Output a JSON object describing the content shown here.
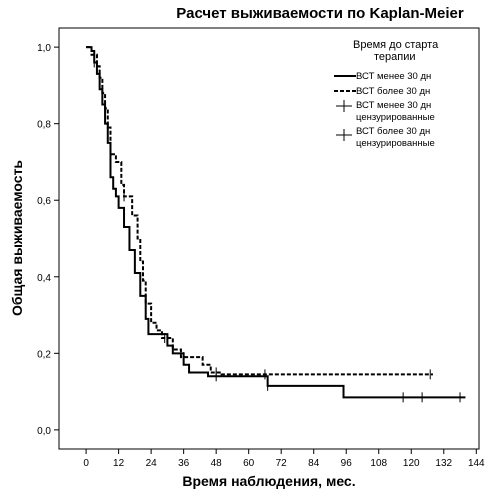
{
  "chart_data": {
    "type": "line",
    "title": "Расчет выживаемости по Kaplan-Meier",
    "xlabel": "Время наблюдения, мес.",
    "ylabel": "Общая выживаемость",
    "xlim": [
      -10,
      145
    ],
    "ylim": [
      -0.05,
      1.05
    ],
    "xticks": [
      0,
      12,
      24,
      36,
      48,
      60,
      72,
      84,
      96,
      108,
      120,
      132,
      144
    ],
    "yticks": [
      0.0,
      0.2,
      0.4,
      0.6,
      0.8,
      1.0
    ],
    "ytick_labels": [
      "0,0",
      "0,2",
      "0,4",
      "0,6",
      "0,8",
      "1,0"
    ],
    "grid": false,
    "legend": {
      "position": "top-right",
      "title": "Время до старта терапии",
      "entries": [
        "ВСТ менее 30 дн",
        "ВСТ более 30 дн",
        "ВСТ менее 30 дн цензурированные",
        "ВСТ более 30 дн цензурированные"
      ]
    },
    "series": [
      {
        "name": "ВСТ менее 30 дн",
        "style": "solid",
        "color": "#000000",
        "steps": [
          [
            0,
            1.0
          ],
          [
            2,
            0.99
          ],
          [
            3,
            0.96
          ],
          [
            4,
            0.93
          ],
          [
            5,
            0.89
          ],
          [
            6,
            0.85
          ],
          [
            7,
            0.8
          ],
          [
            8,
            0.75
          ],
          [
            9,
            0.66
          ],
          [
            10,
            0.63
          ],
          [
            11,
            0.61
          ],
          [
            12,
            0.58
          ],
          [
            14,
            0.53
          ],
          [
            16,
            0.47
          ],
          [
            18,
            0.41
          ],
          [
            20,
            0.35
          ],
          [
            22,
            0.29
          ],
          [
            23,
            0.25
          ],
          [
            30,
            0.22
          ],
          [
            32,
            0.2
          ],
          [
            36,
            0.17
          ],
          [
            38,
            0.15
          ],
          [
            45,
            0.14
          ],
          [
            67,
            0.115
          ],
          [
            95,
            0.085
          ],
          [
            140,
            0.085
          ]
        ],
        "censored": [
          [
            3,
            0.96
          ],
          [
            8,
            0.77
          ],
          [
            48,
            0.14
          ],
          [
            67,
            0.115
          ],
          [
            117,
            0.085
          ],
          [
            124,
            0.085
          ],
          [
            138,
            0.085
          ]
        ]
      },
      {
        "name": "ВСТ более 30 дн",
        "style": "dashed",
        "color": "#000000",
        "steps": [
          [
            0,
            1.0
          ],
          [
            2,
            0.98
          ],
          [
            4,
            0.95
          ],
          [
            5,
            0.92
          ],
          [
            6,
            0.88
          ],
          [
            7,
            0.84
          ],
          [
            8,
            0.79
          ],
          [
            9,
            0.72
          ],
          [
            10,
            0.72
          ],
          [
            11,
            0.7
          ],
          [
            13,
            0.64
          ],
          [
            14,
            0.61
          ],
          [
            17,
            0.56
          ],
          [
            19,
            0.5
          ],
          [
            20,
            0.44
          ],
          [
            21,
            0.39
          ],
          [
            22,
            0.33
          ],
          [
            24,
            0.28
          ],
          [
            26,
            0.26
          ],
          [
            28,
            0.24
          ],
          [
            32,
            0.21
          ],
          [
            35,
            0.19
          ],
          [
            43,
            0.17
          ],
          [
            46,
            0.15
          ],
          [
            50,
            0.145
          ],
          [
            128,
            0.145
          ]
        ],
        "censored": [
          [
            14,
            0.61
          ],
          [
            29,
            0.24
          ],
          [
            36,
            0.19
          ],
          [
            48,
            0.15
          ],
          [
            66,
            0.145
          ],
          [
            127,
            0.145
          ]
        ]
      }
    ]
  }
}
